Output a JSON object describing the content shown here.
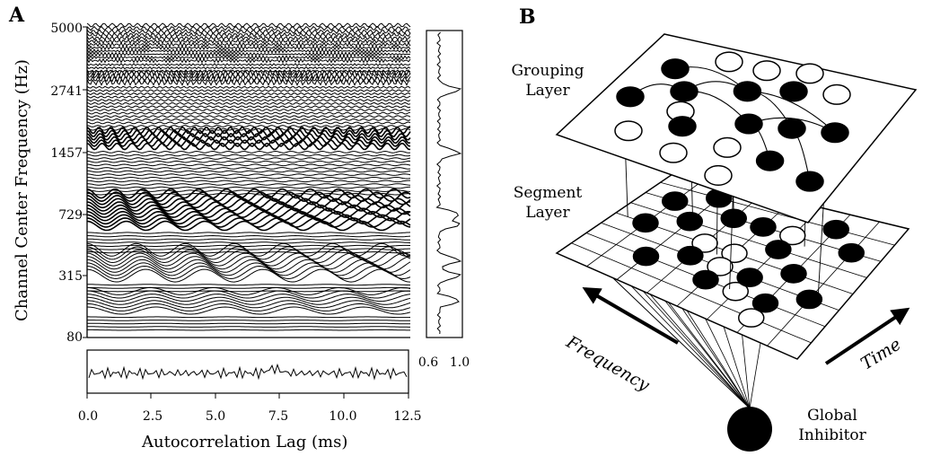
{
  "panelA": {
    "label": "A",
    "ylabel": "Channel Center Frequency (Hz)",
    "xlabel": "Autocorrelation Lag (ms)",
    "yticks": [
      "5000",
      "2741",
      "1457",
      "729",
      "315",
      "80"
    ],
    "xticks": [
      "0.0",
      "2.5",
      "5.0",
      "7.5",
      "10.0",
      "12.5"
    ],
    "side_ticks": [
      "0.6",
      "1.0"
    ]
  },
  "panelB": {
    "label": "B",
    "grouping_layer": [
      "Grouping",
      "Layer"
    ],
    "segment_layer": [
      "Segment",
      "Layer"
    ],
    "frequency": "Frequency",
    "time": "Time",
    "global_inhibitor": [
      "Global",
      "Inhibitor"
    ]
  }
}
